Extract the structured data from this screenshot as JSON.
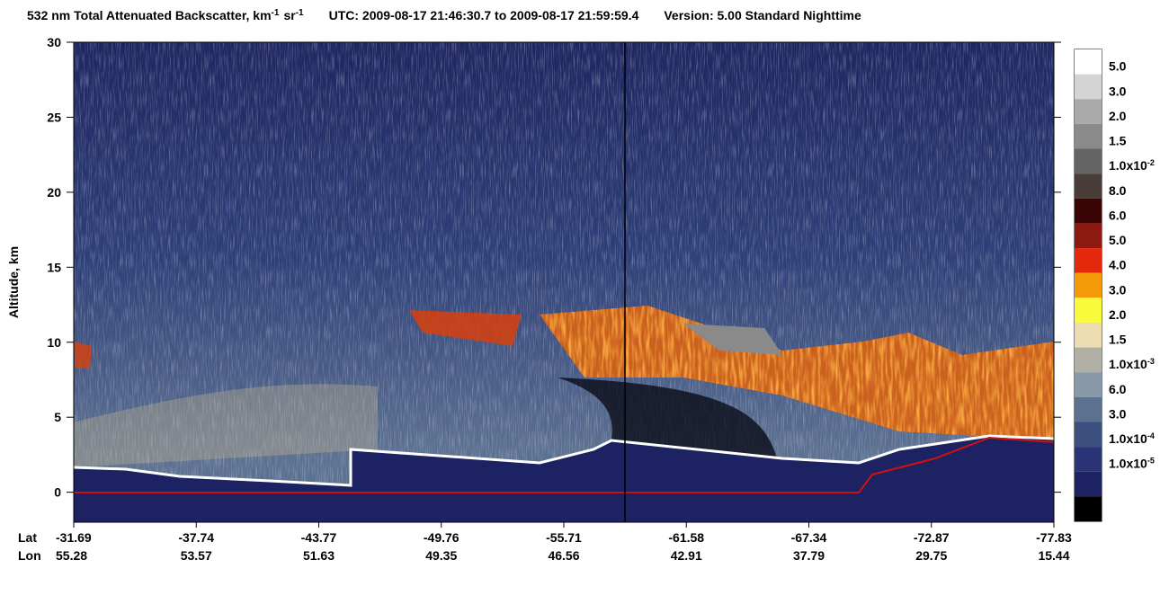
{
  "chart_data": {
    "type": "curtain",
    "title": {
      "main": "532 nm Total Attenuated Backscatter, km",
      "exp1": "-1",
      "unit2": "sr",
      "exp2": "-1",
      "time": "UTC:  2009-08-17 21:46:30.7  to  2009-08-17 21:59:59.4",
      "version": "Version: 5.00  Standard  Nighttime"
    },
    "ylabel": "Altitude, km",
    "ylim": [
      -2,
      30
    ],
    "yticks": [
      0,
      5,
      10,
      15,
      20,
      25,
      30
    ],
    "x_row_labels": [
      "Lat",
      "Lon"
    ],
    "lat": [
      "-31.69",
      "-37.74",
      "-43.77",
      "-49.76",
      "-55.71",
      "-61.58",
      "-67.34",
      "-72.87",
      "-77.83"
    ],
    "lon": [
      "55.28",
      "53.57",
      "51.63",
      "49.35",
      "46.56",
      "42.91",
      "37.79",
      "29.75",
      "15.44"
    ],
    "colorbar": {
      "colors": [
        "#ffffff",
        "#d4d4d4",
        "#aaaaaa",
        "#8a8a8a",
        "#646464",
        "#4a3c38",
        "#3a0404",
        "#8c1a10",
        "#e4280c",
        "#f49a08",
        "#fafa3c",
        "#ecdcb0",
        "#b0b0a4",
        "#8898a8",
        "#5c7090",
        "#3c5080",
        "#2a3476",
        "#1c2262",
        "#000000"
      ],
      "labels": [
        {
          "text": "5.0"
        },
        {
          "text": "3.0"
        },
        {
          "text": "2.0"
        },
        {
          "text": "1.5"
        },
        {
          "text": "1.0x10",
          "exp": "-2"
        },
        {
          "text": "8.0"
        },
        {
          "text": "6.0"
        },
        {
          "text": "5.0"
        },
        {
          "text": "4.0"
        },
        {
          "text": "3.0"
        },
        {
          "text": "2.0"
        },
        {
          "text": "1.5"
        },
        {
          "text": "1.0x10",
          "exp": "-3"
        },
        {
          "text": "6.0"
        },
        {
          "text": "3.0"
        },
        {
          "text": "1.0x10",
          "exp": "-4"
        },
        {
          "text": "1.0x10",
          "exp": "-5"
        }
      ]
    }
  }
}
